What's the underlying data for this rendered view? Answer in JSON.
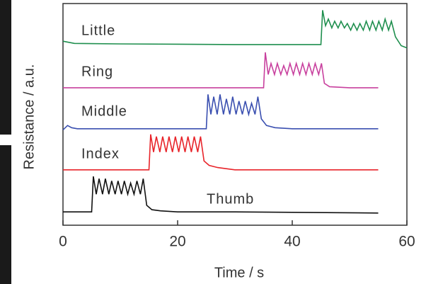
{
  "chart_data": {
    "type": "line",
    "x_label": "Time / s",
    "y_label": "Resistance / a.u.",
    "xlim": [
      0,
      60
    ],
    "xticks": [
      0,
      20,
      40,
      60
    ],
    "ylim": [
      0,
      10
    ],
    "series": [
      {
        "name": "Thumb",
        "color": "#111111",
        "x": [
          0,
          5,
          5.3,
          5.8,
          6.3,
          6.9,
          7.4,
          8.0,
          8.5,
          9.1,
          9.6,
          10.2,
          10.7,
          11.3,
          11.8,
          12.4,
          12.9,
          13.5,
          14.0,
          14.6,
          15.5,
          17,
          20,
          30,
          55
        ],
        "values": [
          0.6,
          0.6,
          2.2,
          1.4,
          2.1,
          1.4,
          2.1,
          1.4,
          2.0,
          1.4,
          2.0,
          1.4,
          2.0,
          1.4,
          1.9,
          1.4,
          2.0,
          1.4,
          2.1,
          0.9,
          0.7,
          0.65,
          0.6,
          0.6,
          0.55
        ]
      },
      {
        "name": "Index",
        "color": "#e8242a",
        "x": [
          0,
          15,
          15.3,
          15.8,
          16.3,
          16.9,
          17.4,
          18.0,
          18.5,
          19.1,
          19.6,
          20.2,
          20.7,
          21.3,
          21.8,
          22.4,
          22.9,
          23.5,
          24.0,
          24.6,
          25.5,
          27,
          30,
          40,
          55
        ],
        "values": [
          2.5,
          2.5,
          4.1,
          3.3,
          4.0,
          3.3,
          4.0,
          3.3,
          4.0,
          3.3,
          4.0,
          3.3,
          4.0,
          3.3,
          4.0,
          3.3,
          4.0,
          3.3,
          4.0,
          2.9,
          2.7,
          2.6,
          2.5,
          2.5,
          2.5
        ]
      },
      {
        "name": "Middle",
        "color": "#3a4fb0",
        "x": [
          0,
          0.8,
          1.5,
          2.5,
          10,
          25,
          25.3,
          25.8,
          26.3,
          26.9,
          27.4,
          28.0,
          28.5,
          29.1,
          29.6,
          30.2,
          30.7,
          31.3,
          31.8,
          32.4,
          32.9,
          33.5,
          34.0,
          34.6,
          35.5,
          37,
          40,
          55
        ],
        "values": [
          4.3,
          4.5,
          4.4,
          4.35,
          4.35,
          4.35,
          5.9,
          5.0,
          5.8,
          5.0,
          5.9,
          5.0,
          5.7,
          5.0,
          5.8,
          5.0,
          5.6,
          5.0,
          5.6,
          5.0,
          5.5,
          5.0,
          5.8,
          4.8,
          4.5,
          4.4,
          4.35,
          4.35
        ]
      },
      {
        "name": "Ring",
        "color": "#c8409e",
        "x": [
          0,
          35,
          35.3,
          35.8,
          36.3,
          36.9,
          37.4,
          38.0,
          38.5,
          39.1,
          39.6,
          40.2,
          40.7,
          41.3,
          41.8,
          42.4,
          42.9,
          43.5,
          44.0,
          44.6,
          45.1,
          45.6,
          46.5,
          50,
          55
        ],
        "values": [
          6.2,
          6.2,
          7.8,
          6.8,
          7.3,
          6.8,
          7.3,
          6.8,
          7.2,
          6.8,
          7.3,
          6.8,
          7.3,
          6.8,
          7.3,
          6.8,
          7.3,
          6.8,
          7.3,
          6.8,
          7.3,
          6.4,
          6.25,
          6.2,
          6.2
        ]
      },
      {
        "name": "Little",
        "color": "#1f8f4e",
        "x": [
          0,
          2,
          10,
          30,
          45,
          45.3,
          45.8,
          46.3,
          46.9,
          47.4,
          48.0,
          48.5,
          49.1,
          49.6,
          50.2,
          50.7,
          51.3,
          51.8,
          52.4,
          52.9,
          53.5,
          54.0,
          54.6,
          55.1,
          55.7,
          56.2,
          56.8,
          57.3,
          58,
          59,
          60
        ],
        "values": [
          8.3,
          8.2,
          8.18,
          8.15,
          8.15,
          9.7,
          9.0,
          9.3,
          8.9,
          9.2,
          8.9,
          9.2,
          8.9,
          9.1,
          8.8,
          9.1,
          8.8,
          9.1,
          8.8,
          9.2,
          8.8,
          9.2,
          8.8,
          9.2,
          8.8,
          9.3,
          8.8,
          9.2,
          8.5,
          8.1,
          8.0
        ]
      }
    ]
  }
}
